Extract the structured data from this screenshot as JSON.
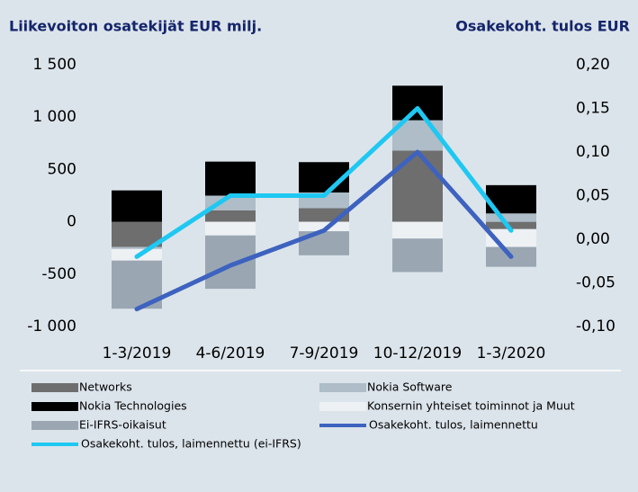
{
  "chart_data": {
    "type": "bar",
    "ylabel": "Liikevoiton osatekijät EUR milj.",
    "y2label": "Osakekoht. tulos EUR",
    "categories": [
      "1-3/2019",
      "4-6/2019",
      "7-9/2019",
      "10-12/2019",
      "1-3/2020"
    ],
    "series": [
      {
        "name": "Networks",
        "type": "bar",
        "color": "#6e6e6e",
        "values": [
          -240,
          110,
          130,
          680,
          -70
        ]
      },
      {
        "name": "Nokia Software",
        "type": "bar",
        "color": "#aebdc8",
        "values": [
          -20,
          140,
          150,
          290,
          80
        ]
      },
      {
        "name": "Nokia Technologies",
        "type": "bar",
        "color": "#000000",
        "values": [
          300,
          325,
          290,
          330,
          270
        ]
      },
      {
        "name": "Konsernin yhteiset toiminnot ja Muut",
        "type": "bar",
        "color": "#eef1f4",
        "values": [
          -110,
          -130,
          -90,
          -160,
          -170
        ]
      },
      {
        "name": "Ei-IFRS-oikaisut",
        "type": "bar",
        "color": "#9aa7b3",
        "values": [
          -460,
          -510,
          -230,
          -320,
          -190
        ]
      },
      {
        "name": "Osakekoht. tulos, laimennettu",
        "type": "line",
        "axis": "y2",
        "color": "#3d62bf",
        "values": [
          -0.08,
          -0.03,
          0.01,
          0.1,
          -0.02
        ]
      },
      {
        "name": "Osakekoht. tulos, laimennettu (ei-IFRS)",
        "type": "line",
        "axis": "y2",
        "color": "#1ec8f2",
        "values": [
          -0.02,
          0.05,
          0.05,
          0.15,
          0.01
        ]
      }
    ],
    "ylim": [
      -1000,
      1500
    ],
    "yticks": [
      {
        "value": -1000,
        "label": "-1 000"
      },
      -500,
      0,
      500,
      {
        "value": 1000,
        "label": "1 000"
      },
      {
        "value": 1500,
        "label": "1 500"
      }
    ],
    "y2lim": [
      -0.1,
      0.2
    ],
    "y2ticks": [
      {
        "value": -0.1,
        "label": "-0,10"
      },
      {
        "value": -0.05,
        "label": "-0,05"
      },
      {
        "value": 0,
        "label": "0,00"
      },
      {
        "value": 0.05,
        "label": "0,05"
      },
      {
        "value": 0.1,
        "label": "0,10"
      },
      {
        "value": 0.15,
        "label": "0,15"
      },
      {
        "value": 0.2,
        "label": "0,20"
      }
    ],
    "grid": false
  }
}
